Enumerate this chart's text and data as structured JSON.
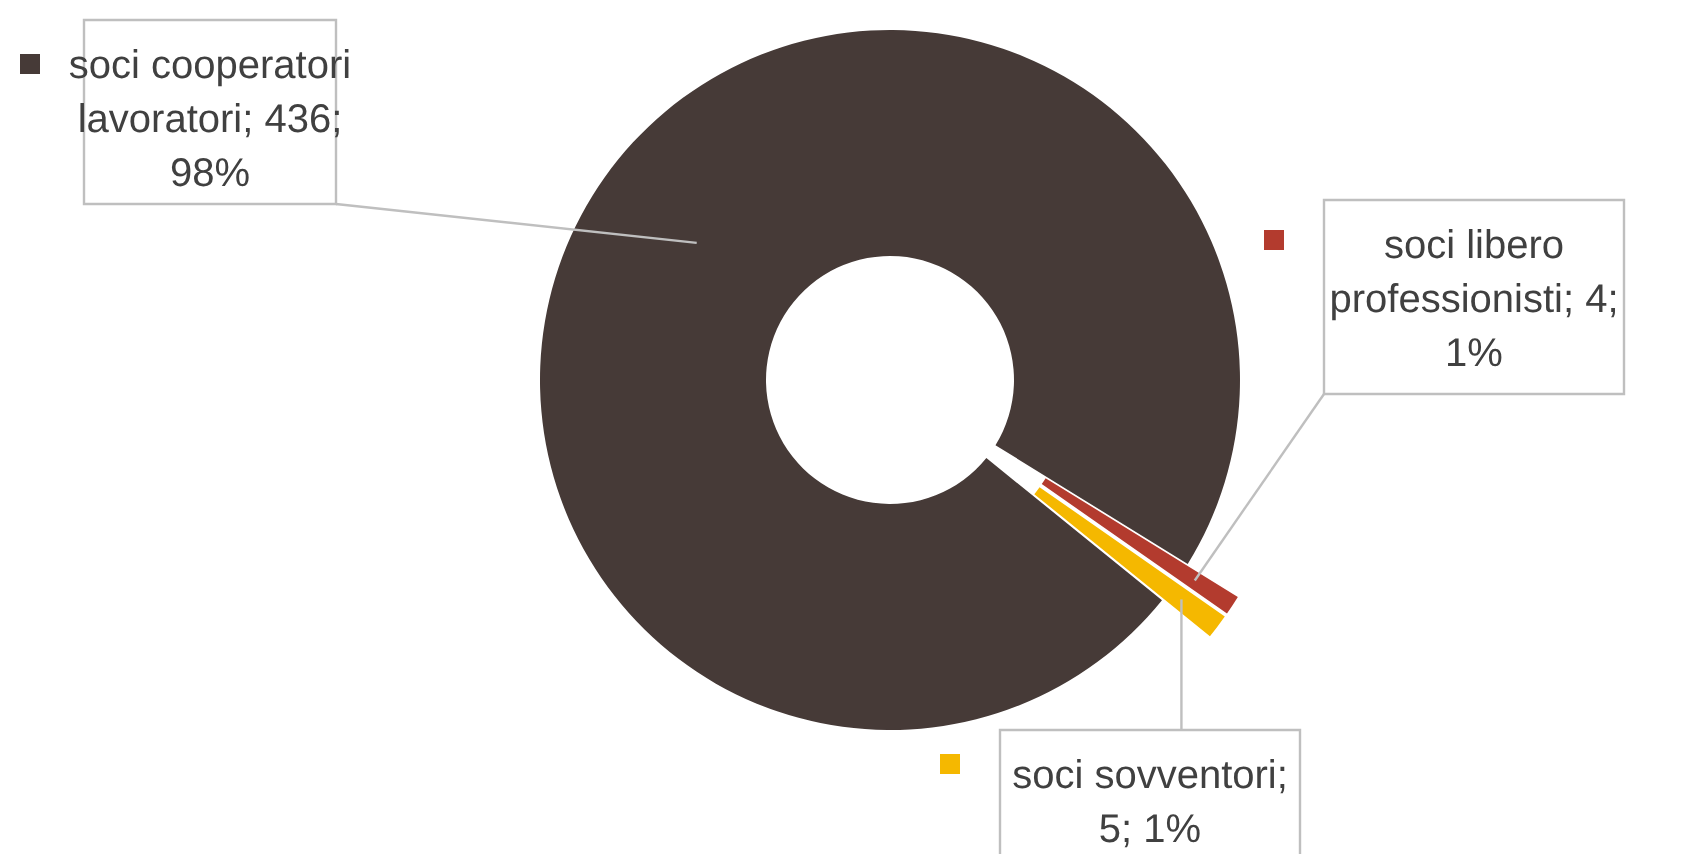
{
  "chart_data": {
    "type": "donut",
    "categories": [
      "soci cooperatori lavoratori",
      "soci libero professionisti",
      "soci sovventori"
    ],
    "values": [
      436,
      4,
      5
    ],
    "colors": [
      "#463a37",
      "#b33b2e",
      "#f5b800"
    ],
    "legend": "left",
    "value_labels": [
      "; 436; 98%",
      "; 4; 1%",
      "; 5; 1%"
    ]
  }
}
